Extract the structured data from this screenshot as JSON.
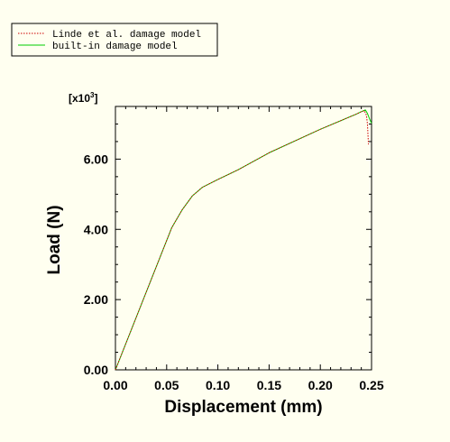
{
  "chart_data": {
    "type": "line",
    "xlabel": "Displacement (mm)",
    "ylabel": "Load (N)",
    "y_multiplier": "[x10",
    "y_multiplier_exp": "3",
    "y_multiplier_close": "]",
    "xlim": [
      0,
      0.25
    ],
    "ylim": [
      0,
      7.5
    ],
    "x_ticks": [
      "0.00",
      "0.05",
      "0.10",
      "0.15",
      "0.20",
      "0.25"
    ],
    "y_ticks": [
      "0.00",
      "2.00",
      "4.00",
      "6.00"
    ],
    "x_tick_values": [
      0,
      0.05,
      0.1,
      0.15,
      0.2,
      0.25
    ],
    "y_tick_values": [
      0,
      2,
      4,
      6
    ],
    "grid": false,
    "legend_position": "top-left",
    "series": [
      {
        "name": "Linde et al. damage model",
        "color": "#cc0000",
        "style": "dotted",
        "points": [
          [
            0,
            0
          ],
          [
            0.055,
            4.05
          ],
          [
            0.065,
            4.55
          ],
          [
            0.075,
            4.95
          ],
          [
            0.085,
            5.2
          ],
          [
            0.1,
            5.42
          ],
          [
            0.12,
            5.7
          ],
          [
            0.15,
            6.18
          ],
          [
            0.2,
            6.85
          ],
          [
            0.235,
            7.28
          ],
          [
            0.24,
            7.35
          ],
          [
            0.243,
            7.38
          ],
          [
            0.245,
            7.25
          ],
          [
            0.246,
            7.0
          ],
          [
            0.2465,
            6.7
          ],
          [
            0.247,
            6.42
          ]
        ]
      },
      {
        "name": "built-in damage model",
        "color": "#00cc00",
        "style": "solid",
        "points": [
          [
            0,
            0
          ],
          [
            0.055,
            4.05
          ],
          [
            0.065,
            4.55
          ],
          [
            0.075,
            4.95
          ],
          [
            0.085,
            5.2
          ],
          [
            0.1,
            5.42
          ],
          [
            0.12,
            5.7
          ],
          [
            0.15,
            6.18
          ],
          [
            0.2,
            6.85
          ],
          [
            0.235,
            7.28
          ],
          [
            0.24,
            7.35
          ],
          [
            0.244,
            7.4
          ],
          [
            0.246,
            7.3
          ],
          [
            0.248,
            7.15
          ],
          [
            0.25,
            7.02
          ]
        ]
      }
    ]
  }
}
